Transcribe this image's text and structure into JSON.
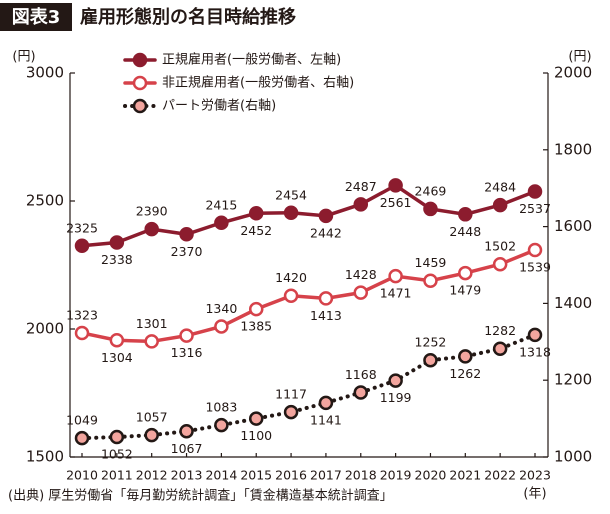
{
  "chart_data": {
    "type": "line",
    "badge": "図表3",
    "title": "雇用形態別の名目時給推移",
    "ylabel": "(円)",
    "y2label": "(円)",
    "xlabel": "(年)",
    "source": "(出典) 厚生労働省「毎月勤労統計調査」「賃金構造基本統計調査」",
    "categories": [
      "2010",
      "2011",
      "2012",
      "2013",
      "2014",
      "2015",
      "2016",
      "2017",
      "2018",
      "2019",
      "2020",
      "2021",
      "2022",
      "2023"
    ],
    "ylim": [
      1500,
      3000
    ],
    "yticks": [
      1500,
      2000,
      2500,
      3000
    ],
    "y2lim": [
      1000,
      2000
    ],
    "y2ticks": [
      1000,
      1200,
      1400,
      1600,
      1800,
      2000
    ],
    "grid": false,
    "legend": "upper left",
    "series": [
      {
        "name": "正規雇用者(一般労働者、左軸)",
        "color": "#8c1c2e",
        "marker_fill": "#8c1c2e",
        "linestyle": "solid",
        "axis": "y",
        "values": [
          2325,
          2338,
          2390,
          2370,
          2415,
          2452,
          2454,
          2442,
          2487,
          2561,
          2469,
          2448,
          2484,
          2537
        ]
      },
      {
        "name": "非正規雇用者(一般労働者、右軸)",
        "color": "#d6424a",
        "marker_fill": "#ffffff",
        "linestyle": "solid",
        "axis": "y2",
        "values": [
          1323,
          1304,
          1301,
          1316,
          1340,
          1385,
          1420,
          1413,
          1428,
          1471,
          1459,
          1479,
          1502,
          1539
        ]
      },
      {
        "name": "パート労働者(右軸)",
        "color": "#231815",
        "marker_fill": "#f3a59e",
        "linestyle": "dotted",
        "axis": "y2",
        "values": [
          1049,
          1052,
          1057,
          1067,
          1083,
          1100,
          1117,
          1141,
          1168,
          1199,
          1252,
          1262,
          1282,
          1318
        ]
      }
    ]
  }
}
